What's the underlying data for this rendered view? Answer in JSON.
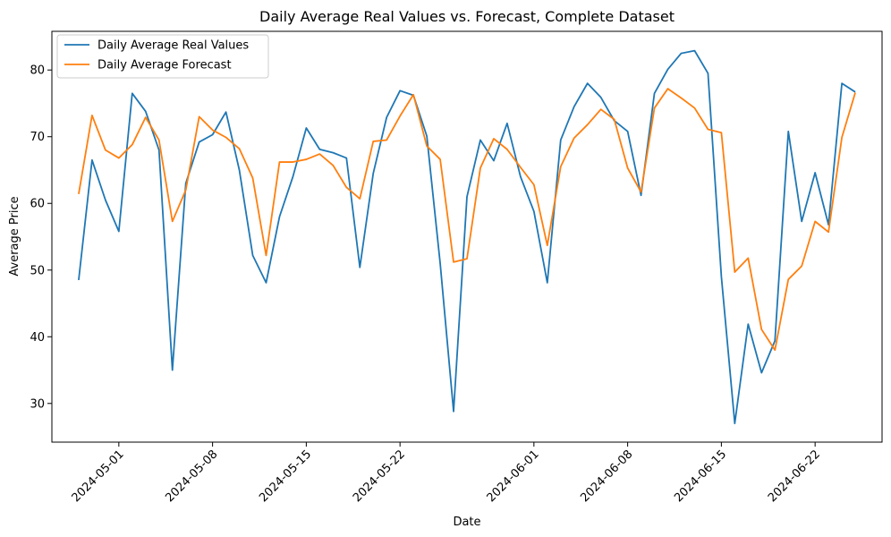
{
  "chart_data": {
    "type": "line",
    "title": "Daily Average Real Values vs. Forecast, Complete Dataset",
    "xlabel": "Date",
    "ylabel": "Average Price",
    "xlim": [
      "2024-04-26",
      "2024-06-27"
    ],
    "ylim": [
      24.2,
      85.8
    ],
    "x_ticks": [
      "2024-05-01",
      "2024-05-08",
      "2024-05-15",
      "2024-05-22",
      "2024-06-01",
      "2024-06-08",
      "2024-06-15",
      "2024-06-22"
    ],
    "y_ticks": [
      30,
      40,
      50,
      60,
      70,
      80
    ],
    "grid": false,
    "legend": "top-left",
    "x": [
      "2024-04-28",
      "2024-04-29",
      "2024-04-30",
      "2024-05-01",
      "2024-05-02",
      "2024-05-03",
      "2024-05-04",
      "2024-05-05",
      "2024-05-06",
      "2024-05-07",
      "2024-05-08",
      "2024-05-09",
      "2024-05-10",
      "2024-05-11",
      "2024-05-12",
      "2024-05-13",
      "2024-05-14",
      "2024-05-15",
      "2024-05-16",
      "2024-05-17",
      "2024-05-18",
      "2024-05-19",
      "2024-05-20",
      "2024-05-21",
      "2024-05-22",
      "2024-05-23",
      "2024-05-24",
      "2024-05-25",
      "2024-05-26",
      "2024-05-27",
      "2024-05-28",
      "2024-05-29",
      "2024-05-30",
      "2024-05-31",
      "2024-06-01",
      "2024-06-02",
      "2024-06-03",
      "2024-06-04",
      "2024-06-05",
      "2024-06-06",
      "2024-06-07",
      "2024-06-08",
      "2024-06-09",
      "2024-06-10",
      "2024-06-11",
      "2024-06-12",
      "2024-06-13",
      "2024-06-14",
      "2024-06-15",
      "2024-06-16",
      "2024-06-17",
      "2024-06-18",
      "2024-06-19",
      "2024-06-20",
      "2024-06-21",
      "2024-06-22",
      "2024-06-23",
      "2024-06-24",
      "2024-06-25"
    ],
    "series": [
      {
        "name": "Daily Average Real Values",
        "color": "#1f77b4",
        "values": [
          48.5,
          66.5,
          60.5,
          55.8,
          76.5,
          73.8,
          68.0,
          35.0,
          63.0,
          69.2,
          70.3,
          73.7,
          65.0,
          52.2,
          48.1,
          58.0,
          64.0,
          71.3,
          68.1,
          67.6,
          66.8,
          50.4,
          64.5,
          72.9,
          76.9,
          76.2,
          70.1,
          51.0,
          28.8,
          61.0,
          69.5,
          66.4,
          72.0,
          64.0,
          58.8,
          48.1,
          69.5,
          74.5,
          78.0,
          75.9,
          72.4,
          70.8,
          61.2,
          76.5,
          80.1,
          82.5,
          82.9,
          79.5,
          49.0,
          27.0,
          41.9,
          34.6,
          39.4,
          70.8,
          57.3,
          64.6,
          56.8,
          78.0,
          76.7
        ]
      },
      {
        "name": "Daily Average Forecast",
        "color": "#ff7f0e",
        "values": [
          61.4,
          73.2,
          68.0,
          66.8,
          68.8,
          72.9,
          69.5,
          57.3,
          62.0,
          73.0,
          71.0,
          69.9,
          68.2,
          63.8,
          52.2,
          66.2,
          66.2,
          66.6,
          67.4,
          65.7,
          62.4,
          60.7,
          69.3,
          69.5,
          73.1,
          76.3,
          68.6,
          66.6,
          51.2,
          51.7,
          65.3,
          69.7,
          68.1,
          65.4,
          62.8,
          53.7,
          65.5,
          69.8,
          71.8,
          74.1,
          72.6,
          65.3,
          61.7,
          74.3,
          77.2,
          75.8,
          74.3,
          71.1,
          70.6,
          49.7,
          51.8,
          41.1,
          38.0,
          48.6,
          50.6,
          57.3,
          55.7,
          69.9,
          76.6
        ]
      }
    ]
  }
}
